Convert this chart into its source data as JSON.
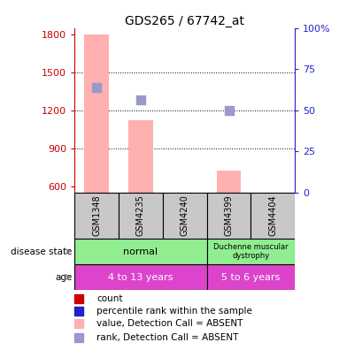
{
  "title": "GDS265 / 67742_at",
  "samples": [
    "GSM1348",
    "GSM4235",
    "GSM4240",
    "GSM4399",
    "GSM4404"
  ],
  "ylim_left": [
    550,
    1850
  ],
  "ylim_right": [
    0,
    100
  ],
  "yticks_left": [
    600,
    900,
    1200,
    1500,
    1800
  ],
  "yticks_right": [
    0,
    25,
    50,
    75,
    100
  ],
  "bar_values": [
    1800,
    1120,
    0,
    720,
    0
  ],
  "bar_color": "#ffb0b0",
  "rank_values": [
    1380,
    1280,
    0,
    1200,
    0
  ],
  "rank_color": "#9999cc",
  "left_axis_color": "#cc0000",
  "right_axis_color": "#2222cc",
  "sample_box_color": "#c8c8c8",
  "disease_color": "#90ee90",
  "age_color": "#dd44cc",
  "legend_colors": [
    "#cc0000",
    "#2222cc",
    "#ffb0b0",
    "#9999cc"
  ],
  "legend_labels": [
    "count",
    "percentile rank within the sample",
    "value, Detection Call = ABSENT",
    "rank, Detection Call = ABSENT"
  ],
  "title_fontsize": 10,
  "annot_fontsize": 8,
  "sample_fontsize": 7,
  "legend_fontsize": 7.5,
  "axis_fontsize": 8
}
